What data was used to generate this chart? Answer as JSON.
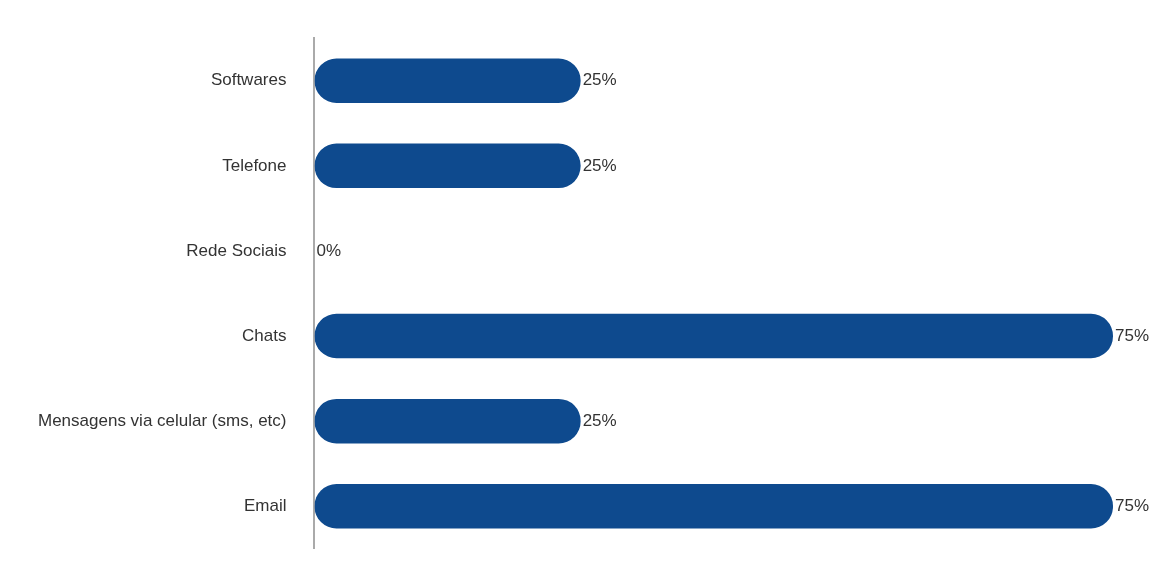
{
  "chart_data": {
    "type": "bar",
    "orientation": "horizontal",
    "categories": [
      "Softwares",
      "Telefone",
      "Rede Sociais",
      "Chats",
      "Mensagens via celular (sms, etc)",
      "Email"
    ],
    "values": [
      25,
      25,
      0,
      75,
      25,
      75
    ],
    "value_labels": [
      "25%",
      "25%",
      "0%",
      "75%",
      "25%",
      "75%"
    ],
    "color": "#0e4a8e",
    "xlim": [
      0,
      75
    ],
    "grid": false,
    "legend": false,
    "tick_labels": "y"
  }
}
